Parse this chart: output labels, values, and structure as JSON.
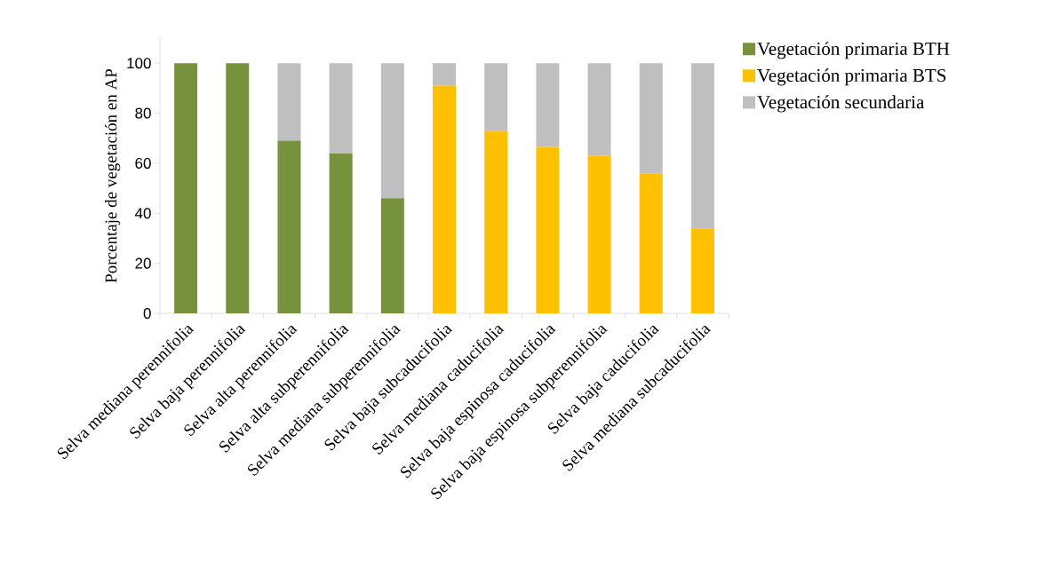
{
  "chart_data": {
    "type": "bar",
    "stacked": true,
    "ylabel": "Porcentaje de vegetación en AP",
    "categories": [
      "Selva mediana perennifolia",
      "Selva baja perennifolia",
      "Selva alta perennifolia",
      "Selva alta subperennifolia",
      "Selva mediana subperennifolia",
      "Selva baja subcaducifolia",
      "Selva mediana caducifolia",
      "Selva baja espinosa caducifolia",
      "Selva baja espinosa subperennifolia",
      "Selva baja caducifolia",
      "Selva mediana subcaducifolia"
    ],
    "series": [
      {
        "name": "Vegetación primaria BTH",
        "color": "#76923c",
        "values": [
          100,
          100,
          69,
          64,
          46,
          null,
          null,
          null,
          null,
          null,
          null
        ]
      },
      {
        "name": "Vegetación primaria BTS",
        "color": "#ffc000",
        "values": [
          null,
          null,
          null,
          null,
          null,
          91,
          73,
          66.5,
          63,
          56,
          34
        ]
      },
      {
        "name": "Vegetación secundaria",
        "color": "#bfbfbf",
        "values": [
          null,
          null,
          31,
          36,
          54,
          9,
          27,
          33.5,
          37,
          44,
          66
        ]
      }
    ],
    "ylim": [
      0,
      110
    ],
    "yticks": [
      0,
      20,
      40,
      60,
      80,
      100
    ],
    "legend": "right",
    "grid": false
  }
}
